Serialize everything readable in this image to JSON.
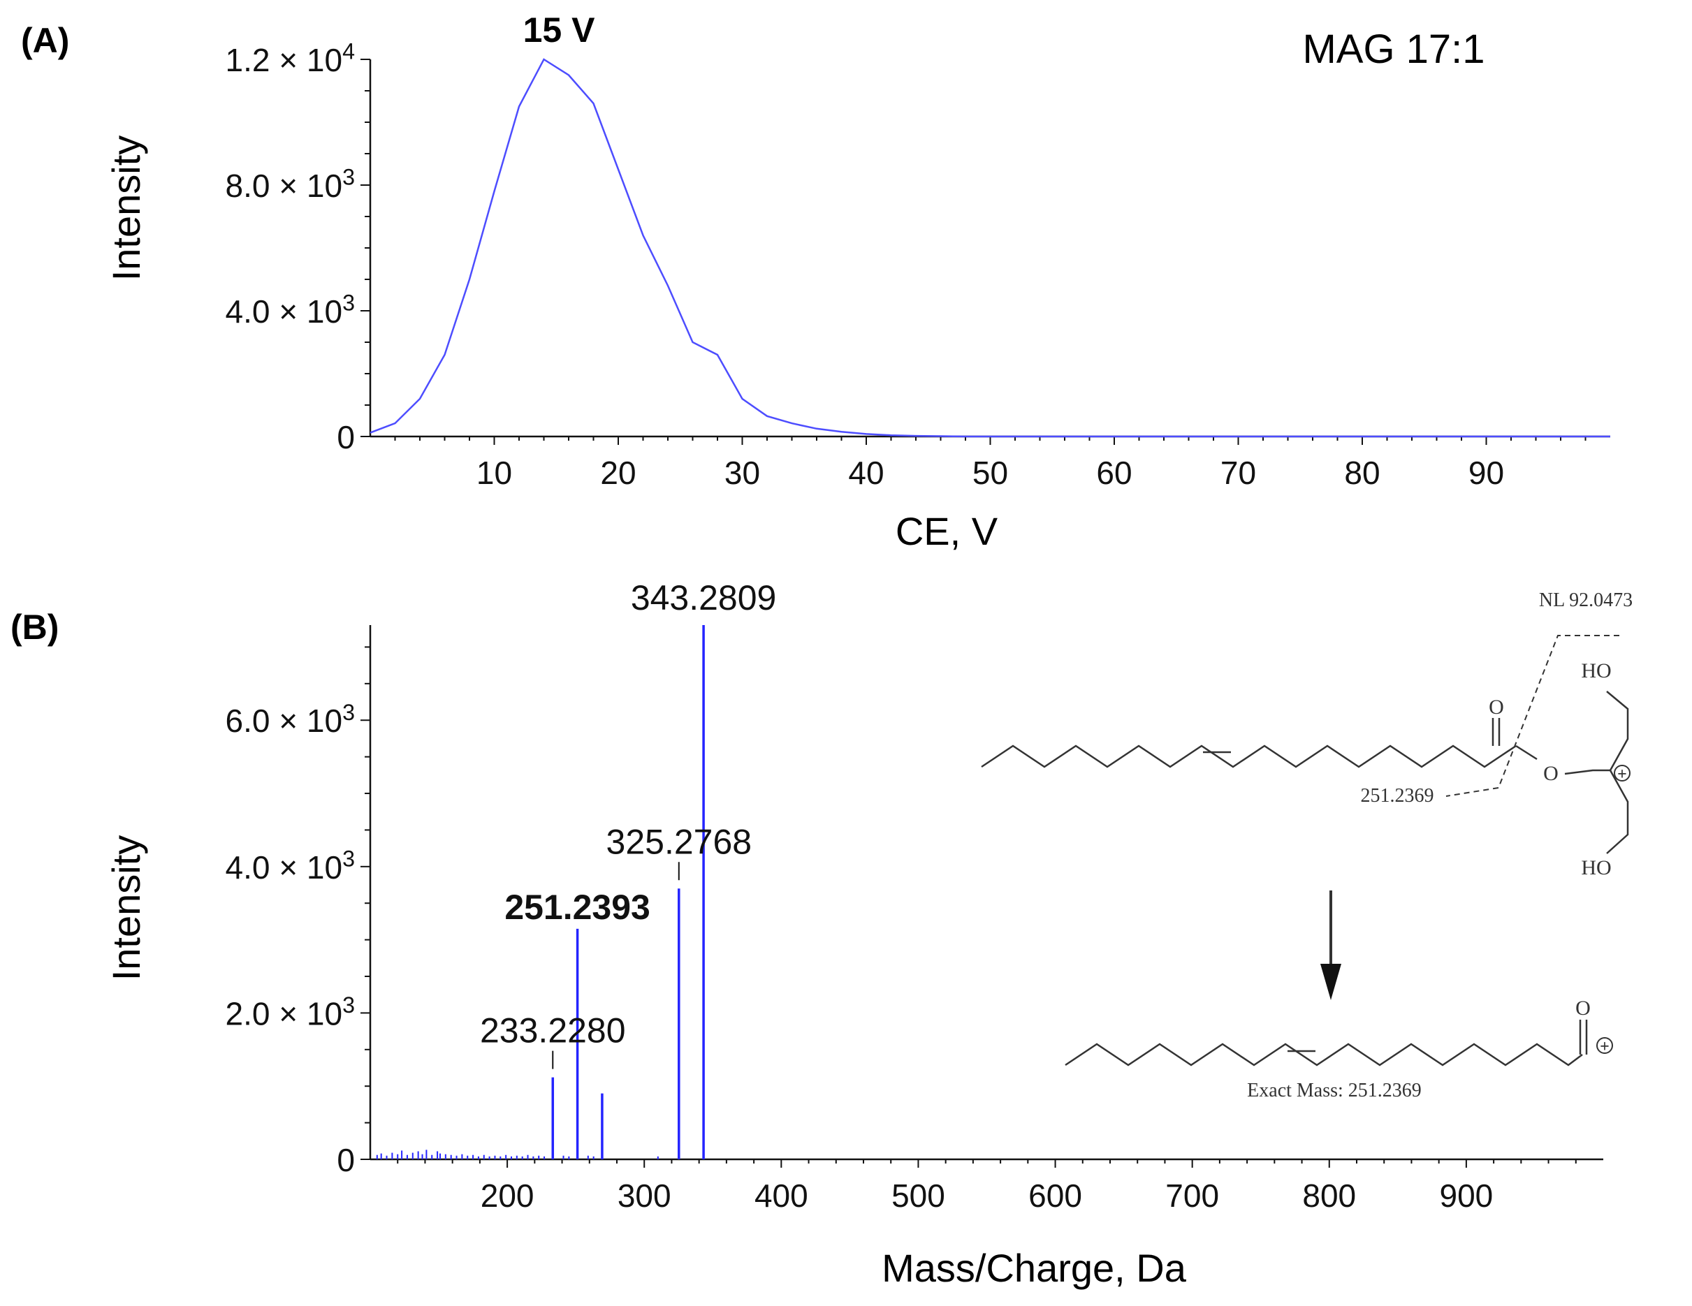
{
  "figure": {
    "panel_a_label": "(A)",
    "panel_b_label": "(B)"
  },
  "chart_data": [
    {
      "type": "line",
      "panel": "(A)",
      "title": "MAG 17:1",
      "peak_label": "15 V",
      "xlabel": "CE, V",
      "ylabel": "Intensity",
      "xlim": [
        0,
        100
      ],
      "ylim": [
        0,
        12000
      ],
      "xticks": [
        10,
        20,
        30,
        40,
        50,
        60,
        70,
        80,
        90
      ],
      "xtick_labels": [
        "10",
        "20",
        "30",
        "40",
        "50",
        "60",
        "70",
        "80",
        "90"
      ],
      "yticks": [
        0,
        4000,
        8000,
        12000
      ],
      "ytick_labels": [
        {
          "mantissa": "0",
          "exp": ""
        },
        {
          "mantissa": "4.0 × 10",
          "exp": "3"
        },
        {
          "mantissa": "8.0 × 10",
          "exp": "3"
        },
        {
          "mantissa": "1.2 × 10",
          "exp": "4"
        }
      ],
      "color": "#4d4dff",
      "series": [
        {
          "x": [
            0,
            2,
            4,
            6,
            8,
            10,
            12,
            14,
            16,
            18,
            20,
            22,
            24,
            26,
            28,
            30,
            32,
            34,
            36,
            38,
            40,
            42,
            44,
            46,
            48,
            50,
            60,
            70,
            80,
            90,
            100
          ],
          "y": [
            120,
            420,
            1200,
            2600,
            5000,
            7800,
            10500,
            12000,
            11500,
            10600,
            8500,
            6400,
            4800,
            3000,
            2600,
            1200,
            650,
            420,
            250,
            150,
            80,
            40,
            20,
            10,
            0,
            0,
            0,
            0,
            0,
            0,
            0
          ]
        }
      ]
    },
    {
      "type": "bar",
      "panel": "(B)",
      "xlabel": "Mass/Charge, Da",
      "ylabel": "Intensity",
      "xlim": [
        100,
        1000
      ],
      "ylim": [
        0,
        7300
      ],
      "xticks": [
        200,
        300,
        400,
        500,
        600,
        700,
        800,
        900
      ],
      "xtick_labels": [
        "200",
        "300",
        "400",
        "500",
        "600",
        "700",
        "800",
        "900"
      ],
      "yticks": [
        0,
        2000,
        4000,
        6000
      ],
      "ytick_labels": [
        {
          "mantissa": "0",
          "exp": ""
        },
        {
          "mantissa": "2.0 × 10",
          "exp": "3"
        },
        {
          "mantissa": "4.0 × 10",
          "exp": "3"
        },
        {
          "mantissa": "6.0 × 10",
          "exp": "3"
        }
      ],
      "color": "#2424ff",
      "major_peaks": [
        {
          "mz": 233.228,
          "intensity": 1120
        },
        {
          "mz": 251.2393,
          "intensity": 3150
        },
        {
          "mz": 269.25,
          "intensity": 900
        },
        {
          "mz": 325.2768,
          "intensity": 3700
        },
        {
          "mz": 343.2809,
          "intensity": 7300
        }
      ],
      "minor_peaks": [
        {
          "mz": 105,
          "intensity": 60
        },
        {
          "mz": 108,
          "intensity": 80
        },
        {
          "mz": 112,
          "intensity": 50
        },
        {
          "mz": 116,
          "intensity": 90
        },
        {
          "mz": 120,
          "intensity": 70
        },
        {
          "mz": 123,
          "intensity": 120
        },
        {
          "mz": 127,
          "intensity": 60
        },
        {
          "mz": 131,
          "intensity": 90
        },
        {
          "mz": 135,
          "intensity": 110
        },
        {
          "mz": 138,
          "intensity": 70
        },
        {
          "mz": 141,
          "intensity": 130
        },
        {
          "mz": 145,
          "intensity": 60
        },
        {
          "mz": 149,
          "intensity": 110
        },
        {
          "mz": 151,
          "intensity": 80
        },
        {
          "mz": 155,
          "intensity": 70
        },
        {
          "mz": 159,
          "intensity": 60
        },
        {
          "mz": 163,
          "intensity": 50
        },
        {
          "mz": 167,
          "intensity": 70
        },
        {
          "mz": 171,
          "intensity": 50
        },
        {
          "mz": 175,
          "intensity": 60
        },
        {
          "mz": 179,
          "intensity": 40
        },
        {
          "mz": 183,
          "intensity": 60
        },
        {
          "mz": 187,
          "intensity": 40
        },
        {
          "mz": 191,
          "intensity": 50
        },
        {
          "mz": 195,
          "intensity": 40
        },
        {
          "mz": 199,
          "intensity": 60
        },
        {
          "mz": 203,
          "intensity": 40
        },
        {
          "mz": 207,
          "intensity": 50
        },
        {
          "mz": 211,
          "intensity": 40
        },
        {
          "mz": 215,
          "intensity": 60
        },
        {
          "mz": 219,
          "intensity": 40
        },
        {
          "mz": 223,
          "intensity": 50
        },
        {
          "mz": 227,
          "intensity": 40
        },
        {
          "mz": 241,
          "intensity": 50
        },
        {
          "mz": 245,
          "intensity": 40
        },
        {
          "mz": 259,
          "intensity": 50
        },
        {
          "mz": 263,
          "intensity": 40
        },
        {
          "mz": 310,
          "intensity": 40
        }
      ],
      "peak_labels": [
        {
          "text": "233.2280",
          "mz": 233.228,
          "bold": false,
          "tick": true
        },
        {
          "text": "251.2393",
          "mz": 251.2393,
          "bold": true,
          "tick": false
        },
        {
          "text": "325.2768",
          "mz": 325.2768,
          "bold": false,
          "tick": true
        },
        {
          "text": "343.2809",
          "mz": 343.2809,
          "bold": false,
          "tick": false
        }
      ],
      "annotations": {
        "neutral_loss": "NL 92.0473",
        "fragment_mass": "251.2369",
        "exact_mass": "Exact Mass: 251.2369",
        "atoms": {
          "oxygen": "O",
          "hydroxyl_top": "HO",
          "hydroxyl_bottom": "HO",
          "charge": "+"
        }
      }
    }
  ]
}
